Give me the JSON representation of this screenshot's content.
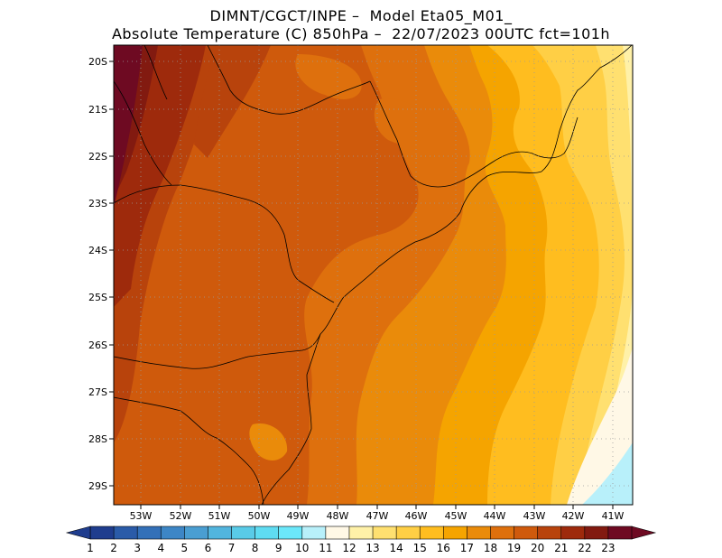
{
  "title": {
    "line1": "DIMNT/CGCT/INPE –  Model Eta05_M01_",
    "line2": "Absolute Temperature (C) 850hPa –  22/07/2023 00UTC fct=101h"
  },
  "map": {
    "lon_range": [
      -53.7,
      -40.5
    ],
    "lat_range": [
      -29.45,
      -19.7
    ],
    "lat_ticks": [
      "20S",
      "21S",
      "22S",
      "23S",
      "24S",
      "25S",
      "26S",
      "27S",
      "28S",
      "29S"
    ],
    "lon_ticks": [
      "53W",
      "52W",
      "51W",
      "50W",
      "49W",
      "48W",
      "47W",
      "46W",
      "45W",
      "44W",
      "43W",
      "42W",
      "41W"
    ]
  },
  "colorbar": {
    "labels": [
      "1",
      "2",
      "3",
      "4",
      "5",
      "6",
      "7",
      "8",
      "9",
      "10",
      "11",
      "12",
      "13",
      "14",
      "15",
      "16",
      "17",
      "18",
      "19",
      "20",
      "21",
      "22",
      "23"
    ],
    "colors": [
      "#1f3d8e",
      "#2a5ba8",
      "#3370b8",
      "#3d86c6",
      "#4a9ed2",
      "#52b5de",
      "#59cbe8",
      "#5fdcf2",
      "#6be8fa",
      "#b8f0fa",
      "#fff8e6",
      "#fff1a8",
      "#ffe070",
      "#ffcf45",
      "#ffbd1f",
      "#f5a400",
      "#ea8b0a",
      "#de700d",
      "#cf5a0c",
      "#b8430c",
      "#9e2a0c",
      "#821a10",
      "#6e0a22"
    ]
  }
}
